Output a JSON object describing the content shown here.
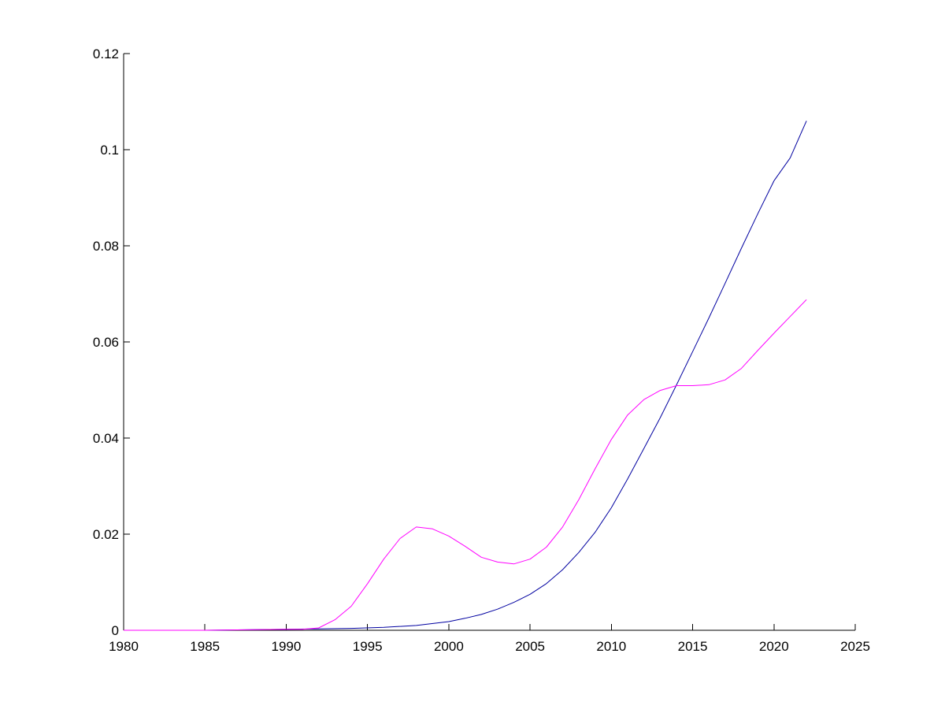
{
  "chart_data": {
    "type": "line",
    "title": "",
    "xlabel": "",
    "ylabel": "",
    "xlim": [
      1980,
      2025
    ],
    "ylim": [
      0,
      0.12
    ],
    "x_ticks": [
      1980,
      1985,
      1990,
      1995,
      2000,
      2005,
      2010,
      2015,
      2020,
      2025
    ],
    "x_tick_labels": [
      "1980",
      "1985",
      "1990",
      "1995",
      "2000",
      "2005",
      "2010",
      "2015",
      "2020",
      "2025"
    ],
    "y_ticks": [
      0,
      0.02,
      0.04,
      0.06,
      0.08,
      0.1,
      0.12
    ],
    "y_tick_labels": [
      "0",
      "0.02",
      "0.04",
      "0.06",
      "0.08",
      "0.1",
      "0.12"
    ],
    "grid": false,
    "legend": false,
    "series": [
      {
        "color": "#0000a0",
        "x": [
          1980,
          1985,
          1990,
          1992,
          1994,
          1996,
          1998,
          2000,
          2001,
          2002,
          2003,
          2004,
          2005,
          2006,
          2007,
          2008,
          2009,
          2010,
          2011,
          2012,
          2013,
          2014,
          2015,
          2016,
          2017,
          2018,
          2019,
          2020,
          2021,
          2022
        ],
        "y": [
          0,
          0,
          0.0002,
          0.0003,
          0.0004,
          0.0006,
          0.001,
          0.0018,
          0.0025,
          0.0033,
          0.0044,
          0.0058,
          0.0075,
          0.0097,
          0.0126,
          0.0162,
          0.0204,
          0.0255,
          0.0315,
          0.0378,
          0.0442,
          0.051,
          0.058,
          0.065,
          0.0722,
          0.0795,
          0.0866,
          0.0935,
          0.0983,
          0.106
        ]
      },
      {
        "color": "#ff00ff",
        "x": [
          1980,
          1985,
          1990,
          1991,
          1992,
          1993,
          1994,
          1995,
          1996,
          1997,
          1998,
          1999,
          2000,
          2001,
          2002,
          2003,
          2004,
          2005,
          2006,
          2007,
          2008,
          2009,
          2010,
          2011,
          2012,
          2013,
          2014,
          2015,
          2016,
          2017,
          2018,
          2019,
          2020,
          2021,
          2022
        ],
        "y": [
          0,
          0,
          0.0002,
          0.0002,
          0.0005,
          0.0022,
          0.005,
          0.0097,
          0.0148,
          0.0191,
          0.0215,
          0.0211,
          0.0196,
          0.0175,
          0.0152,
          0.0142,
          0.0138,
          0.0148,
          0.0173,
          0.0215,
          0.0272,
          0.0336,
          0.0397,
          0.0448,
          0.048,
          0.0499,
          0.0509,
          0.0509,
          0.0511,
          0.0521,
          0.0545,
          0.0582,
          0.0618,
          0.0653,
          0.0688
        ]
      }
    ]
  }
}
